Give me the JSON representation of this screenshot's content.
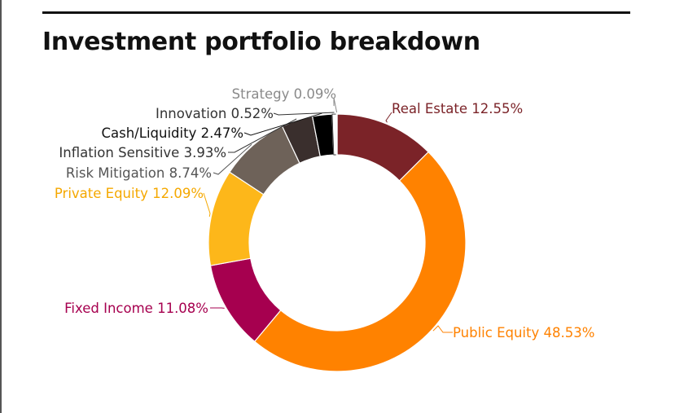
{
  "chart_data": {
    "type": "pie",
    "variant": "donut",
    "title": "Investment portfolio breakdown",
    "legend": "none",
    "slices": [
      {
        "label": "Real Estate 12.55%",
        "name": "Real Estate",
        "value": 12.55,
        "color": "#7B2328",
        "label_color": "#7B2328"
      },
      {
        "label": "Public Equity 48.53%",
        "name": "Public Equity",
        "value": 48.53,
        "color": "#FF8200",
        "label_color": "#FF8200"
      },
      {
        "label": "Fixed Income 11.08%",
        "name": "Fixed Income",
        "value": 11.08,
        "color": "#A6004F",
        "label_color": "#A6004F"
      },
      {
        "label": "Private Equity 12.09%",
        "name": "Private Equity",
        "value": 12.09,
        "color": "#FDB71A",
        "label_color": "#F5A800"
      },
      {
        "label": "Risk Mitigation 8.74%",
        "name": "Risk Mitigation",
        "value": 8.74,
        "color": "#6E6259",
        "label_color": "#555555"
      },
      {
        "label": "Inflation Sensitive 3.93%",
        "name": "Inflation Sensitive",
        "value": 3.93,
        "color": "#3A2F2D",
        "label_color": "#333333"
      },
      {
        "label": "Cash/Liquidity 2.47%",
        "name": "Cash/Liquidity",
        "value": 2.47,
        "color": "#000000",
        "label_color": "#111111"
      },
      {
        "label": "Innovation 0.52%",
        "name": "Innovation",
        "value": 0.52,
        "color": "#FFFFFF",
        "label_color": "#333333"
      },
      {
        "label": "Strategy 0.09%",
        "name": "Strategy",
        "value": 0.09,
        "color": "#8A8A8A",
        "label_color": "#8A8A8A"
      }
    ]
  }
}
